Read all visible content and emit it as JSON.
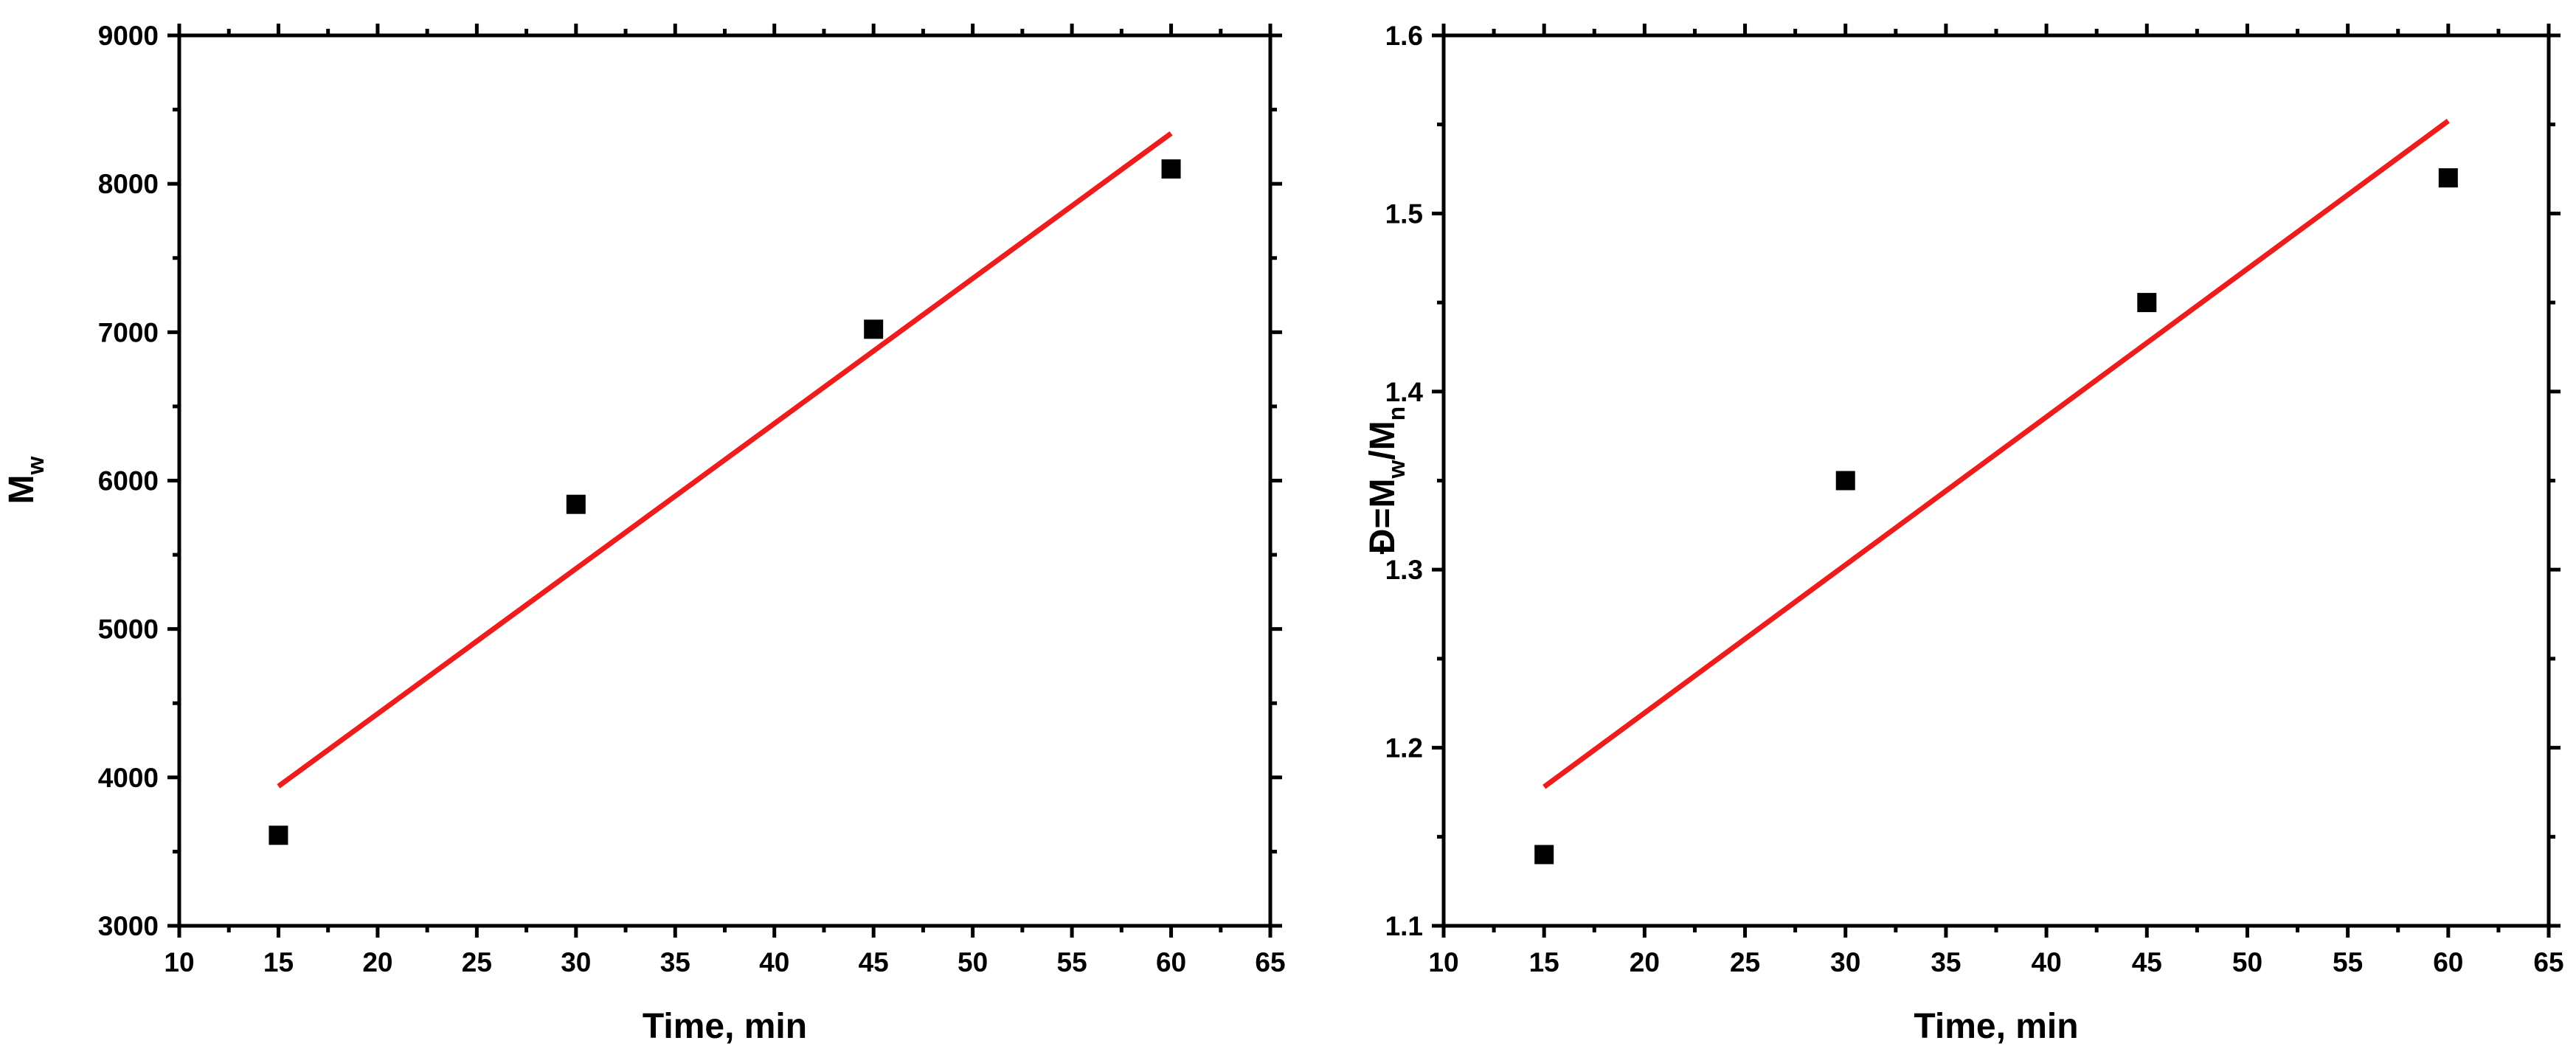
{
  "chart_data": [
    {
      "type": "scatter",
      "xlabel": "Time, min",
      "ylabel": {
        "base": "M",
        "sub": "w"
      },
      "xlim": [
        10,
        65
      ],
      "ylim": [
        3000,
        9000
      ],
      "xticks": [
        10,
        15,
        20,
        25,
        30,
        35,
        40,
        45,
        50,
        55,
        60,
        65
      ],
      "yticks": [
        3000,
        4000,
        5000,
        6000,
        7000,
        8000,
        9000
      ],
      "grid": false,
      "points": {
        "x": [
          15,
          30,
          45,
          60
        ],
        "y": [
          3610,
          5840,
          7020,
          8100
        ],
        "marker": "square",
        "color": "#000000"
      },
      "fit": {
        "x": [
          15,
          60
        ],
        "y": [
          3940,
          8340
        ],
        "color": "#ee1c1c"
      }
    },
    {
      "type": "scatter",
      "xlabel": "Time, min",
      "ylabel": {
        "parts": [
          "Đ=M",
          "w",
          "/M",
          "n"
        ]
      },
      "xlim": [
        10,
        65
      ],
      "ylim": [
        1.1,
        1.6
      ],
      "xticks": [
        10,
        15,
        20,
        25,
        30,
        35,
        40,
        45,
        50,
        55,
        60,
        65
      ],
      "yticks": [
        1.1,
        1.2,
        1.3,
        1.4,
        1.5,
        1.6
      ],
      "grid": false,
      "points": {
        "x": [
          15,
          30,
          45,
          60
        ],
        "y": [
          1.14,
          1.35,
          1.45,
          1.52
        ],
        "marker": "square",
        "color": "#000000"
      },
      "fit": {
        "x": [
          15,
          60
        ],
        "y": [
          1.178,
          1.552
        ],
        "color": "#ee1c1c"
      }
    }
  ]
}
